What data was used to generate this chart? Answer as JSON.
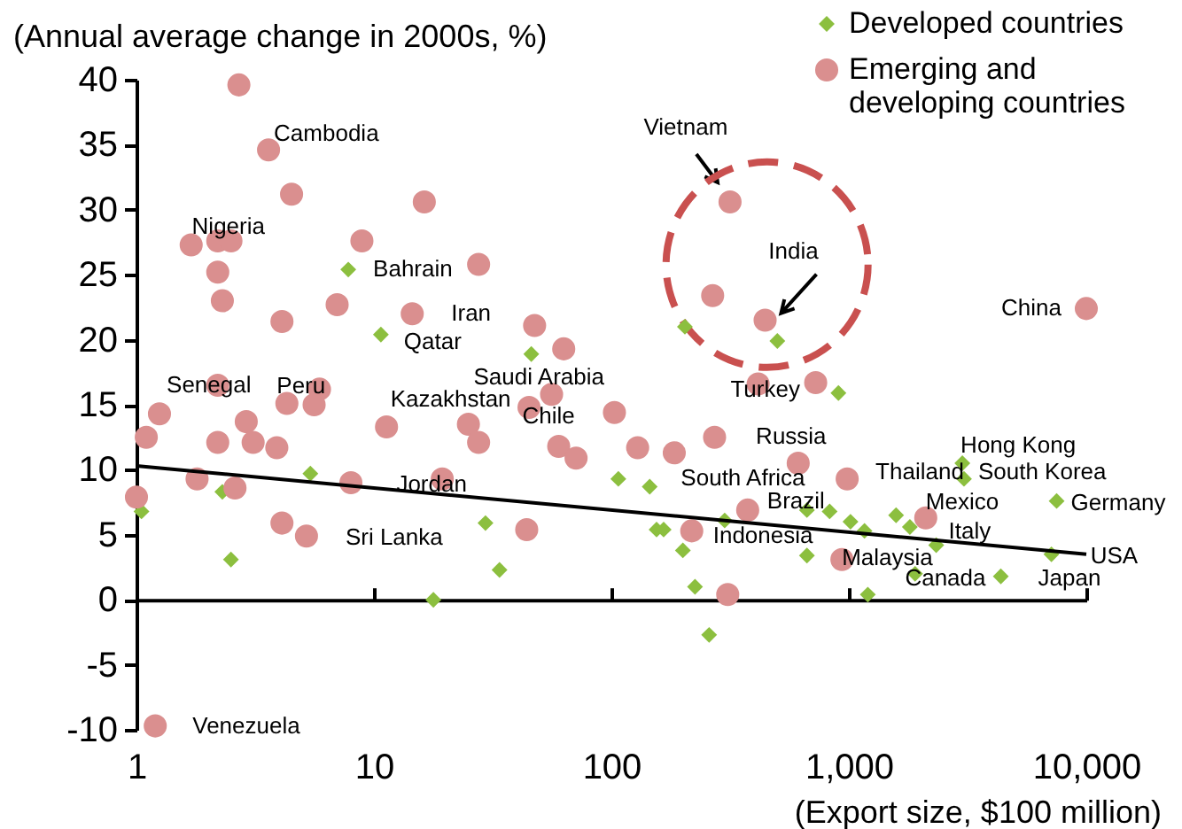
{
  "chart_data": {
    "type": "scatter",
    "ylabel": "(Annual average change in 2000s, %)",
    "xlabel": "(Export size, $100 million)",
    "log": "x",
    "xlim": [
      1,
      10000
    ],
    "xticks": [
      1,
      10,
      100,
      {
        "value": 1000,
        "label": "1,000"
      },
      {
        "value": 10000,
        "label": "10,000"
      }
    ],
    "ylim": [
      -10,
      40
    ],
    "yticks": [
      -10,
      -5,
      0,
      5,
      10,
      15,
      20,
      25,
      30,
      35,
      40
    ],
    "legend": "top right",
    "series": [
      {
        "name": "Developed countries",
        "type": "scatter",
        "marker": "diamond",
        "color": "#8cbf3f",
        "x": [
          7.8,
          10.7,
          46,
          204,
          500,
          904,
          1.05,
          2.3,
          5.4,
          2.5,
          17.8,
          29.5,
          33.8,
          107,
          145,
          155,
          166,
          200,
          225,
          258,
          300,
          666,
          830,
          666,
          1016,
          1164,
          1202,
          1581,
          1807,
          1901,
          2333,
          3006,
          3054,
          4365,
          7500,
          7130
        ],
        "values": [
          25.4,
          20.4,
          18.9,
          21.0,
          19.9,
          15.9,
          6.8,
          8.3,
          9.7,
          3.1,
          0,
          5.9,
          2.3,
          9.3,
          8.7,
          5.4,
          5.4,
          3.8,
          1.0,
          -2.7,
          6.1,
          6.9,
          6.8,
          3.4,
          6.0,
          5.3,
          0.4,
          6.5,
          5.6,
          2.0,
          4.2,
          10.5,
          9.3,
          1.8,
          7.6,
          3.5
        ]
      },
      {
        "name": "Emerging and developing countries",
        "type": "scatter",
        "marker": "circle",
        "color": "#da8f8f",
        "x": [
          2.7,
          3.6,
          4.5,
          16.3,
          1.7,
          2.2,
          2.5,
          8.9,
          27.6,
          2.2,
          2.3,
          7.0,
          4.1,
          14.5,
          47.5,
          63,
          2.2,
          5.9,
          1.25,
          4.3,
          5.6,
          56,
          45,
          1.1,
          2.2,
          2.9,
          3.1,
          3.9,
          11.3,
          25,
          27.6,
          60,
          71,
          1.8,
          2.6,
          8.0,
          19.4,
          1.0,
          4.1,
          5.2,
          44,
          1.2,
          316,
          267,
          444,
          10000,
          415,
          725,
          103,
          129,
          184,
          272,
          612,
          984,
          375,
          218,
          2108,
          935,
          309
        ],
        "values": [
          39.6,
          34.6,
          31.2,
          30.6,
          27.3,
          27.6,
          27.6,
          27.6,
          25.8,
          25.2,
          23.0,
          22.7,
          21.4,
          22.0,
          21.1,
          19.3,
          16.5,
          16.2,
          14.3,
          15.1,
          15.0,
          15.8,
          14.8,
          12.5,
          12.1,
          13.7,
          12.1,
          11.7,
          13.3,
          13.5,
          12.1,
          11.8,
          10.9,
          9.3,
          8.6,
          9.0,
          9.3,
          7.9,
          5.9,
          4.9,
          5.4,
          -9.7,
          30.6,
          23.4,
          21.5,
          22.4,
          16.6,
          16.7,
          14.4,
          11.7,
          11.3,
          12.5,
          10.5,
          9.3,
          6.9,
          5.3,
          6.3,
          3.1,
          0.4
        ]
      },
      {
        "type": "line",
        "color": "#000000",
        "x": [
          1,
          10000
        ],
        "values": [
          10.3,
          3.5
        ]
      }
    ],
    "annotations": [
      {
        "text": "Cambodia",
        "x": 3.6,
        "y": 34.6
      },
      {
        "text": "Nigeria",
        "x": 2.2,
        "y": 27.6
      },
      {
        "text": "Bahrain",
        "x": 7.8,
        "y": 25.4
      },
      {
        "text": "Iran",
        "x": 14.5,
        "y": 22.0
      },
      {
        "text": "Qatar",
        "x": 10.7,
        "y": 20.4
      },
      {
        "text": "Saudi Arabia",
        "x": 63,
        "y": 19.3
      },
      {
        "text": "Senegal",
        "x": 2.2,
        "y": 16.5
      },
      {
        "text": "Peru",
        "x": 4.3,
        "y": 15.1
      },
      {
        "text": "Kazakhstan",
        "x": 25,
        "y": 13.5
      },
      {
        "text": "Chile",
        "x": 45,
        "y": 14.8
      },
      {
        "text": "Jordan",
        "x": 19.4,
        "y": 9.3
      },
      {
        "text": "Sri Lanka",
        "x": 5.2,
        "y": 4.9
      },
      {
        "text": "Venezuela",
        "x": 1.2,
        "y": -9.7
      },
      {
        "text": "Vietnam",
        "x": 316,
        "y": 30.6
      },
      {
        "text": "India",
        "x": 444,
        "y": 21.5
      },
      {
        "text": "China",
        "x": 10000,
        "y": 22.4
      },
      {
        "text": "Turkey",
        "x": 415,
        "y": 16.6
      },
      {
        "text": "Russia",
        "x": 612,
        "y": 10.5
      },
      {
        "text": "South Africa",
        "x": 272,
        "y": 12.5
      },
      {
        "text": "Brazil",
        "x": 375,
        "y": 6.9
      },
      {
        "text": "Indonesia",
        "x": 218,
        "y": 5.3
      },
      {
        "text": "Thailand",
        "x": 984,
        "y": 9.3
      },
      {
        "text": "Malaysia",
        "x": 935,
        "y": 3.1
      },
      {
        "text": "Mexico",
        "x": 2108,
        "y": 6.3
      },
      {
        "text": "Italy",
        "x": 2333,
        "y": 4.2
      },
      {
        "text": "Canada",
        "x": 1202,
        "y": 0.4
      },
      {
        "text": "Japan",
        "x": 4365,
        "y": 1.8
      },
      {
        "text": "USA",
        "x": 7130,
        "y": 3.5
      },
      {
        "text": "Germany",
        "x": 7500,
        "y": 7.6
      },
      {
        "text": "Hong Kong",
        "x": 3006,
        "y": 10.5
      },
      {
        "text": "South Korea",
        "x": 3054,
        "y": 9.3
      }
    ]
  }
}
